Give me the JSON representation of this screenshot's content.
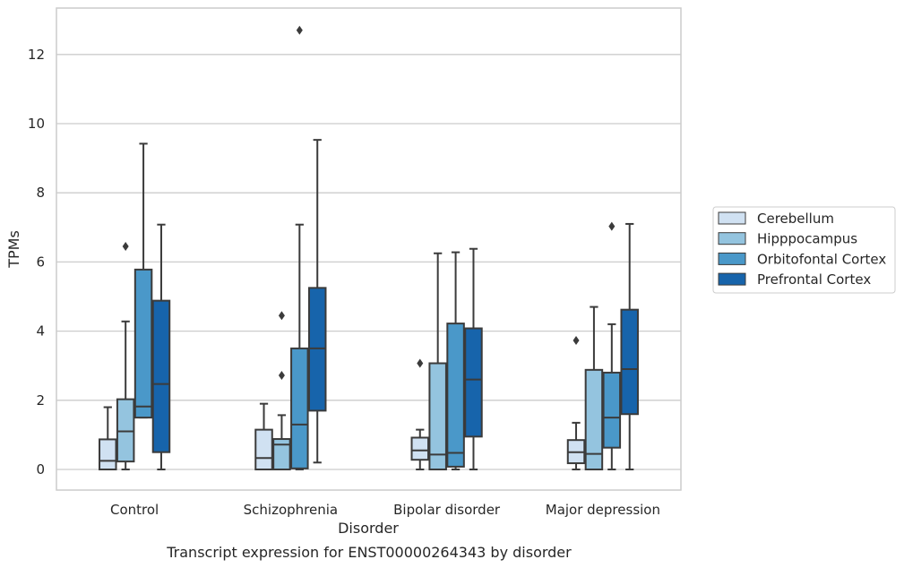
{
  "chart_data": {
    "type": "box",
    "title": "",
    "caption": "Transcript expression for ENST00000264343 by disorder",
    "xlabel": "Disorder",
    "ylabel": "TPMs",
    "ylim": [
      -0.6,
      13.4
    ],
    "yticks": [
      0,
      2,
      4,
      6,
      8,
      10,
      12
    ],
    "grid": "horizontal",
    "legend_position": "right",
    "categories": [
      "Control",
      "Schizophrenia",
      "Bipolar disorder",
      "Major depression"
    ],
    "series": [
      {
        "name": "Cerebellum",
        "color": "#d0e1f2",
        "boxes": [
          {
            "whislo": 0,
            "q1": 0,
            "med": 0.25,
            "q3": 0.87,
            "whishi": 1.8,
            "fliers": []
          },
          {
            "whislo": 0,
            "q1": 0,
            "med": 0.33,
            "q3": 1.15,
            "whishi": 1.9,
            "fliers": []
          },
          {
            "whislo": 0,
            "q1": 0.28,
            "med": 0.55,
            "q3": 0.92,
            "whishi": 1.15,
            "fliers": [
              3.07
            ]
          },
          {
            "whislo": 0,
            "q1": 0.18,
            "med": 0.5,
            "q3": 0.85,
            "whishi": 1.35,
            "fliers": [
              3.73
            ]
          }
        ]
      },
      {
        "name": "Hipppocampus",
        "color": "#94c4df",
        "boxes": [
          {
            "whislo": 0,
            "q1": 0.23,
            "med": 1.1,
            "q3": 2.03,
            "whishi": 4.28,
            "fliers": [
              6.45
            ]
          },
          {
            "whislo": 0,
            "q1": 0,
            "med": 0.72,
            "q3": 0.88,
            "whishi": 1.57,
            "fliers": [
              2.72,
              4.45
            ]
          },
          {
            "whislo": 0,
            "q1": 0,
            "med": 0.43,
            "q3": 3.07,
            "whishi": 6.25,
            "fliers": []
          },
          {
            "whislo": 0,
            "q1": 0,
            "med": 0.45,
            "q3": 2.88,
            "whishi": 4.7,
            "fliers": []
          }
        ]
      },
      {
        "name": "Orbitofontal Cortex",
        "color": "#4a98c9",
        "boxes": [
          {
            "whislo": 1.5,
            "q1": 1.5,
            "med": 1.82,
            "q3": 5.78,
            "whishi": 9.42,
            "fliers": []
          },
          {
            "whislo": 0,
            "q1": 0.03,
            "med": 1.3,
            "q3": 3.5,
            "whishi": 7.08,
            "fliers": [
              12.7
            ]
          },
          {
            "whislo": 0,
            "q1": 0.08,
            "med": 0.48,
            "q3": 4.22,
            "whishi": 6.28,
            "fliers": []
          },
          {
            "whislo": 0,
            "q1": 0.63,
            "med": 1.5,
            "q3": 2.8,
            "whishi": 4.2,
            "fliers": [
              7.03
            ]
          }
        ]
      },
      {
        "name": "Prefrontal Cortex",
        "color": "#1764ab",
        "boxes": [
          {
            "whislo": 0,
            "q1": 0.5,
            "med": 2.47,
            "q3": 4.88,
            "whishi": 7.08,
            "fliers": []
          },
          {
            "whislo": 0.2,
            "q1": 1.7,
            "med": 3.5,
            "q3": 5.25,
            "whishi": 9.53,
            "fliers": []
          },
          {
            "whislo": 0,
            "q1": 0.95,
            "med": 2.6,
            "q3": 4.08,
            "whishi": 6.38,
            "fliers": []
          },
          {
            "whislo": 0,
            "q1": 1.6,
            "med": 2.9,
            "q3": 4.62,
            "whishi": 7.1,
            "fliers": []
          }
        ]
      }
    ]
  }
}
